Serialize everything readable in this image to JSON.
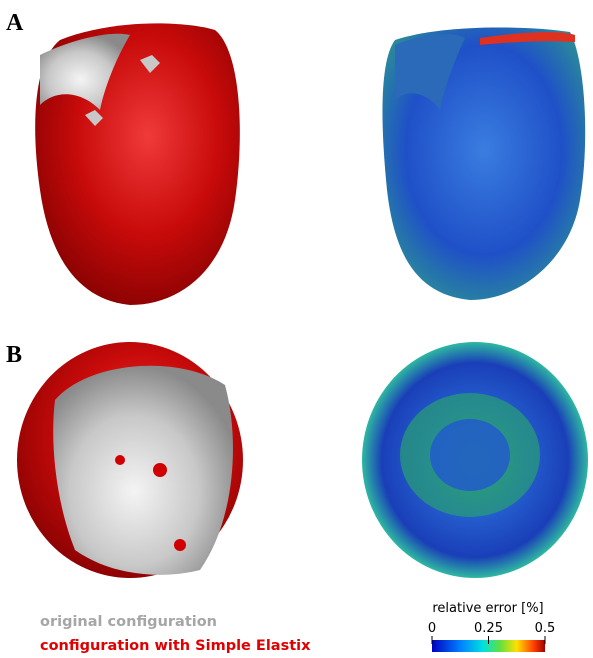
{
  "panels": [
    {
      "label": "A"
    },
    {
      "label": "B"
    }
  ],
  "legend": {
    "items": [
      {
        "text": "original configuration",
        "color": "#a6a6a6"
      },
      {
        "text": "configuration with Simple Elastix",
        "color": "#e00000"
      }
    ]
  },
  "colorbar": {
    "title": "relative error [%]",
    "lim": [
      0,
      0.5
    ],
    "ticks": [
      0,
      0.25,
      0.5
    ]
  }
}
